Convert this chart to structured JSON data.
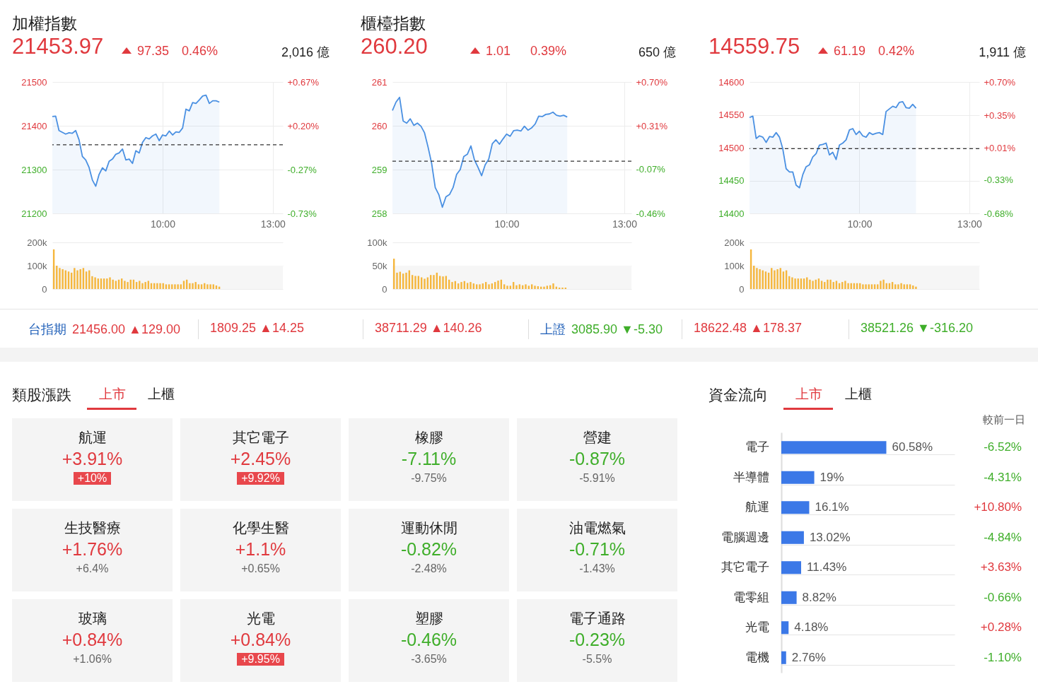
{
  "chart_data": [
    {
      "type": "area",
      "title": "加權指數",
      "subtitle": "21453.97",
      "annotations": [
        "97.35",
        "0.46%",
        "2,016 億"
      ],
      "categories": [
        null,
        null,
        null,
        null,
        null,
        null,
        null,
        null,
        null,
        null,
        null,
        null,
        null,
        null,
        null,
        null,
        null,
        null,
        null,
        null,
        null,
        null,
        null,
        null,
        null,
        null,
        null,
        null,
        null,
        null,
        null,
        null,
        null,
        "10:00",
        null,
        null,
        null,
        null,
        null,
        null,
        null,
        null,
        null,
        null,
        null,
        null,
        null,
        null,
        null,
        null,
        null,
        null,
        null,
        null,
        null,
        null,
        null,
        null,
        null,
        null,
        null,
        null,
        null,
        null,
        null,
        null,
        "13:00",
        null,
        null,
        null
      ],
      "series": [
        {
          "color": "#4a90e2",
          "values": [
            21421,
            21422,
            21389,
            21385,
            21381,
            21384,
            21383,
            21389,
            21368,
            21330,
            21322,
            21305,
            21276,
            21262,
            21289,
            21304,
            21297,
            21319,
            21324,
            21335,
            21338,
            21347,
            21322,
            21324,
            21314,
            21343,
            21338,
            21362,
            21373,
            21370,
            21377,
            21381,
            21366,
            21379,
            21377,
            21388,
            21379,
            21386,
            21385,
            21395,
            21438,
            21434,
            21453,
            21451,
            21459,
            21468,
            21470,
            21451,
            21457,
            21457,
            21454,
            null,
            null,
            null,
            null,
            null,
            null,
            null,
            null,
            null,
            null,
            null,
            null,
            null,
            null,
            null,
            null,
            null,
            null,
            null
          ]
        }
      ],
      "ylim": [
        21200,
        21500
      ],
      "yticks": [
        21200,
        21300,
        21400,
        21500
      ],
      "y2lim": [
        -0.73,
        0.67
      ],
      "y2ticks": [
        {
          "value": -0.73,
          "label": "-0.73%"
        },
        {
          "value": -0.27,
          "label": "-0.27%"
        },
        {
          "value": 0.2,
          "label": "+0.20%"
        },
        {
          "value": 0.67,
          "label": "+0.67%"
        }
      ],
      "ref_lines": [
        {
          "axis": "y",
          "value": 21356.62,
          "color": "#333333",
          "line_style": "dashed"
        }
      ],
      "grid": true
    },
    {
      "type": "bar",
      "color": "#f5b63c",
      "categories": [
        null,
        null,
        null,
        null,
        null,
        null,
        null,
        null,
        null,
        null,
        null,
        null,
        null,
        null,
        null,
        null,
        null,
        null,
        null,
        null,
        null,
        null,
        null,
        null,
        null,
        null,
        null,
        null,
        null,
        null,
        null,
        null,
        null,
        null,
        null,
        null,
        null,
        null,
        null,
        null,
        null,
        null,
        null,
        null,
        null,
        null,
        null,
        null,
        null,
        null,
        null,
        null,
        null,
        null,
        null,
        null,
        null,
        null,
        null,
        null,
        null,
        null,
        null,
        null,
        null,
        null,
        null,
        null,
        null,
        null,
        null,
        null,
        null,
        null,
        null,
        null,
        null,
        null
      ],
      "values": [
        170000,
        100000,
        90000,
        85000,
        80000,
        75000,
        70000,
        90000,
        80000,
        85000,
        90000,
        75000,
        80000,
        55000,
        50000,
        45000,
        45000,
        45000,
        45000,
        50000,
        40000,
        35000,
        40000,
        45000,
        35000,
        30000,
        40000,
        40000,
        30000,
        35000,
        25000,
        30000,
        35000,
        25000,
        25000,
        25000,
        25000,
        25000,
        20000,
        20000,
        20000,
        20000,
        20000,
        20000,
        35000,
        40000,
        25000,
        25000,
        30000,
        20000,
        20000,
        25000,
        20000,
        20000,
        20000,
        15000,
        10000,
        null,
        null,
        null,
        null,
        null,
        null,
        null,
        null,
        null,
        null,
        null,
        null,
        null,
        null,
        null,
        null,
        null,
        null,
        null,
        null,
        null
      ],
      "ylim": [
        0,
        200000
      ],
      "yticks": [
        0,
        {
          "value": 100000,
          "label": "100k"
        },
        {
          "value": 200000,
          "label": "200k"
        }
      ],
      "bands": [
        {
          "axis": "y",
          "from": 0,
          "to": 100000,
          "color": "#f6f6f6"
        }
      ],
      "grid": "y",
      "tick_labels": "y"
    },
    {
      "type": "area",
      "title": "櫃檯指數",
      "subtitle": "260.20",
      "annotations": [
        "1.01",
        "0.39%",
        "650 億"
      ],
      "categories": [
        null,
        null,
        null,
        null,
        null,
        null,
        null,
        null,
        null,
        null,
        null,
        null,
        null,
        null,
        null,
        null,
        null,
        null,
        null,
        null,
        null,
        null,
        null,
        null,
        null,
        null,
        null,
        null,
        null,
        null,
        null,
        null,
        "10:00",
        null,
        null,
        null,
        null,
        null,
        null,
        null,
        null,
        null,
        null,
        null,
        null,
        null,
        null,
        null,
        null,
        null,
        null,
        null,
        null,
        null,
        null,
        null,
        null,
        null,
        null,
        null,
        null,
        null,
        null,
        null,
        null,
        "13:00",
        null,
        null
      ],
      "series": [
        {
          "color": "#4a90e2",
          "values": [
            260.35,
            260.54,
            260.65,
            260.11,
            260.06,
            260.16,
            260.01,
            260.06,
            259.99,
            259.84,
            259.51,
            259.14,
            258.59,
            258.43,
            258.14,
            258.38,
            258.43,
            258.59,
            258.89,
            259.0,
            259.3,
            259.35,
            259.54,
            259.22,
            259.05,
            258.86,
            259.11,
            259.24,
            259.59,
            259.68,
            259.58,
            259.7,
            259.81,
            259.76,
            259.89,
            259.9,
            259.88,
            259.99,
            259.9,
            259.95,
            260.04,
            260.22,
            260.21,
            260.26,
            260.27,
            260.31,
            260.24,
            260.22,
            260.24,
            260.2,
            null,
            null,
            null,
            null,
            null,
            null,
            null,
            null,
            null,
            null,
            null,
            null,
            null,
            null,
            null,
            null,
            null,
            null
          ]
        }
      ],
      "ylim": [
        258,
        261
      ],
      "yticks": [
        258,
        259,
        260,
        261
      ],
      "y2lim": [
        -0.46,
        0.7
      ],
      "y2ticks": [
        {
          "value": -0.46,
          "label": "-0.46%"
        },
        {
          "value": -0.07,
          "label": "-0.07%"
        },
        {
          "value": 0.31,
          "label": "+0.31%"
        },
        {
          "value": 0.7,
          "label": "+0.70%"
        }
      ],
      "ref_lines": [
        {
          "axis": "y",
          "value": 259.19,
          "color": "#333333",
          "line_style": "dashed"
        }
      ],
      "grid": true
    },
    {
      "type": "bar",
      "color": "#f5b63c",
      "categories": [
        null,
        null,
        null,
        null,
        null,
        null,
        null,
        null,
        null,
        null,
        null,
        null,
        null,
        null,
        null,
        null,
        null,
        null,
        null,
        null,
        null,
        null,
        null,
        null,
        null,
        null,
        null,
        null,
        null,
        null,
        null,
        null,
        null,
        null,
        null,
        null,
        null,
        null,
        null,
        null,
        null,
        null,
        null,
        null,
        null,
        null,
        null,
        null,
        null,
        null,
        null,
        null,
        null,
        null,
        null,
        null,
        null,
        null,
        null,
        null,
        null,
        null,
        null,
        null,
        null,
        null,
        null,
        null,
        null,
        null,
        null,
        null,
        null,
        null,
        null,
        null,
        null,
        null
      ],
      "values": [
        65000,
        35000,
        37000,
        33000,
        35000,
        40000,
        30000,
        28000,
        28000,
        25000,
        22000,
        25000,
        30000,
        30000,
        35000,
        28000,
        27000,
        28000,
        20000,
        15000,
        17000,
        12000,
        15000,
        17000,
        13000,
        15000,
        12000,
        10000,
        10000,
        12000,
        15000,
        10000,
        12000,
        15000,
        18000,
        20000,
        10000,
        7000,
        7000,
        15000,
        8000,
        10000,
        8000,
        10000,
        7000,
        10000,
        7000,
        6000,
        5000,
        5000,
        7000,
        8000,
        12000,
        5000,
        3000,
        3000,
        3000,
        null,
        null,
        null,
        null,
        null,
        null,
        null,
        null,
        null,
        null,
        null,
        null,
        null,
        null,
        null,
        null,
        null,
        null,
        null,
        null,
        null
      ],
      "ylim": [
        0,
        100000
      ],
      "yticks": [
        0,
        {
          "value": 50000,
          "label": "50k"
        },
        {
          "value": 100000,
          "label": "100k"
        }
      ],
      "bands": [
        {
          "axis": "y",
          "from": 0,
          "to": 50000,
          "color": "#f6f6f6"
        }
      ],
      "grid": "y",
      "tick_labels": "y"
    },
    {
      "type": "area",
      "subtitle": "14559.75",
      "annotations": [
        "61.19",
        "0.42%",
        "1,911 億"
      ],
      "categories": [
        null,
        null,
        null,
        null,
        null,
        null,
        null,
        null,
        null,
        null,
        null,
        null,
        null,
        null,
        null,
        null,
        null,
        null,
        null,
        null,
        null,
        null,
        null,
        null,
        null,
        null,
        null,
        null,
        null,
        null,
        null,
        null,
        null,
        "10:00",
        null,
        null,
        null,
        null,
        null,
        null,
        null,
        null,
        null,
        null,
        null,
        null,
        null,
        null,
        null,
        null,
        null,
        null,
        null,
        null,
        null,
        null,
        null,
        null,
        null,
        null,
        null,
        null,
        null,
        null,
        null,
        null,
        "13:00",
        null,
        null,
        null
      ],
      "series": [
        {
          "color": "#4a90e2",
          "values": [
            14546,
            14548,
            14514,
            14518,
            14516,
            14508,
            14517,
            14516,
            14523,
            14516,
            14498,
            14468,
            14463,
            14463,
            14443,
            14439,
            14459,
            14471,
            14474,
            14486,
            14491,
            14504,
            14505,
            14507,
            14489,
            14493,
            14482,
            14504,
            14507,
            14512,
            14527,
            14529,
            14520,
            14525,
            14518,
            14516,
            14523,
            14520,
            14522,
            14523,
            14520,
            14555,
            14559,
            14563,
            14561,
            14569,
            14570,
            14561,
            14560,
            14566,
            14560,
            null,
            null,
            null,
            null,
            null,
            null,
            null,
            null,
            null,
            null,
            null,
            null,
            null,
            null,
            null,
            null,
            null,
            null,
            null
          ]
        }
      ],
      "ylim": [
        14400,
        14600
      ],
      "yticks": [
        14400,
        14450,
        14500,
        14550,
        14600
      ],
      "y2lim": [
        -0.68,
        0.7
      ],
      "y2ticks": [
        {
          "value": -0.68,
          "label": "-0.68%"
        },
        {
          "value": -0.33,
          "label": "-0.33%"
        },
        {
          "value": 0.01,
          "label": "+0.01%"
        },
        {
          "value": 0.35,
          "label": "+0.35%"
        },
        {
          "value": 0.7,
          "label": "+0.70%"
        }
      ],
      "ref_lines": [
        {
          "axis": "y",
          "value": 14498.56,
          "color": "#333333",
          "line_style": "dashed"
        }
      ],
      "grid": true
    },
    {
      "type": "bar",
      "color": "#f5b63c",
      "categories": [
        null,
        null,
        null,
        null,
        null,
        null,
        null,
        null,
        null,
        null,
        null,
        null,
        null,
        null,
        null,
        null,
        null,
        null,
        null,
        null,
        null,
        null,
        null,
        null,
        null,
        null,
        null,
        null,
        null,
        null,
        null,
        null,
        null,
        null,
        null,
        null,
        null,
        null,
        null,
        null,
        null,
        null,
        null,
        null,
        null,
        null,
        null,
        null,
        null,
        null,
        null,
        null,
        null,
        null,
        null,
        null,
        null,
        null,
        null,
        null,
        null,
        null,
        null,
        null,
        null,
        null,
        null,
        null,
        null,
        null,
        null,
        null,
        null,
        null,
        null,
        null,
        null,
        null
      ],
      "values": [
        170000,
        100000,
        90000,
        85000,
        80000,
        75000,
        70000,
        90000,
        80000,
        85000,
        90000,
        75000,
        80000,
        55000,
        50000,
        45000,
        45000,
        45000,
        45000,
        50000,
        40000,
        35000,
        40000,
        45000,
        35000,
        30000,
        40000,
        40000,
        30000,
        35000,
        25000,
        30000,
        35000,
        25000,
        25000,
        25000,
        25000,
        25000,
        20000,
        20000,
        20000,
        20000,
        20000,
        20000,
        35000,
        40000,
        25000,
        25000,
        30000,
        20000,
        20000,
        25000,
        20000,
        20000,
        20000,
        15000,
        10000,
        null,
        null,
        null,
        null,
        null,
        null,
        null,
        null,
        null,
        null,
        null,
        null,
        null,
        null,
        null,
        null,
        null,
        null,
        null,
        null,
        null
      ],
      "ylim": [
        0,
        200000
      ],
      "yticks": [
        0,
        {
          "value": 100000,
          "label": "100k"
        },
        {
          "value": 200000,
          "label": "200k"
        }
      ],
      "bands": [
        {
          "axis": "y",
          "from": 0,
          "to": 100000,
          "color": "#f6f6f6"
        }
      ],
      "grid": "y",
      "tick_labels": "y"
    },
    {
      "type": "other",
      "categories": [
        "台指期",
        null,
        null,
        "上證",
        null,
        null
      ],
      "values": [
        129.0,
        14.25,
        140.26,
        -5.3,
        178.37,
        -316.2
      ],
      "value_labels": [
        "21456.00 ▲129.00",
        "1809.25 ▲14.25",
        "38711.29 ▲140.26",
        "3085.90 ▼-5.30",
        "18622.48 ▲178.37",
        "38521.26 ▼-316.20"
      ]
    },
    {
      "type": "other",
      "title": "類股漲跌",
      "annotations": [
        "上市",
        "上櫃"
      ],
      "categories": [
        "航運",
        "其它電子",
        "橡膠",
        "營建",
        "生技醫療",
        "化學生醫",
        "運動休閒",
        "油電燃氣",
        "玻璃",
        "光電",
        "塑膠",
        "電子通路"
      ],
      "series": [
        {
          "values": [
            3.91,
            2.45,
            -7.11,
            -0.87,
            1.76,
            1.1,
            -0.82,
            -0.71,
            0.84,
            0.84,
            -0.46,
            -0.23
          ],
          "value_labels": [
            "+3.91%",
            "+2.45%",
            "-7.11%",
            "-0.87%",
            "+1.76%",
            "+1.1%",
            "-0.82%",
            "-0.71%",
            "+0.84%",
            "+0.84%",
            "-0.46%",
            "-0.23%"
          ]
        },
        {
          "values": [
            10,
            9.92,
            -9.75,
            -5.91,
            6.4,
            0.65,
            -2.48,
            -1.43,
            1.06,
            9.95,
            -3.65,
            -5.5
          ],
          "value_labels": [
            "+10%",
            "+9.92%",
            "-9.75%",
            "-5.91%",
            "+6.4%",
            "+0.65%",
            "-2.48%",
            "-1.43%",
            "+1.06%",
            "+9.95%",
            "-3.65%",
            "-5.5%"
          ]
        }
      ]
    },
    {
      "type": "bar",
      "orientation": "horizontal",
      "title": "資金流向",
      "color": "#3b78e7",
      "grid": true,
      "categories": [
        "電子",
        "半導體",
        "航運",
        "電腦週邊",
        "其它電子",
        "電零組",
        "光電",
        "電機"
      ],
      "values": [
        60.58,
        19,
        16.1,
        13.02,
        11.43,
        8.82,
        4.18,
        2.76
      ],
      "value_labels": [
        "60.58%",
        "19%",
        "16.1%",
        "13.02%",
        "11.43%",
        "8.82%",
        "4.18%",
        "2.76%"
      ],
      "annotations": [
        "上市",
        "上櫃",
        "較前一日",
        "-6.52%",
        "-4.31%",
        "+10.80%",
        "-4.84%",
        "+3.63%",
        "-0.66%",
        "+0.28%",
        "-1.10%"
      ]
    }
  ]
}
